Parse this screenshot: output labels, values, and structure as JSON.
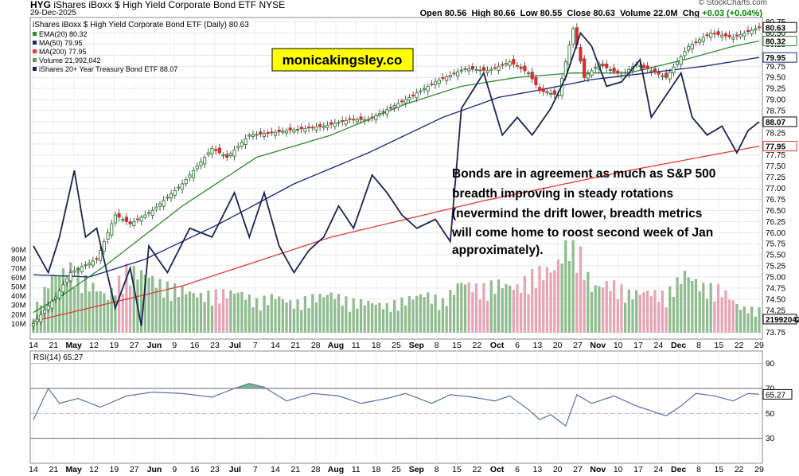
{
  "header": {
    "symbol": "HYG",
    "name": "iShares iBoxx $ High Yield Corporate Bond ETF",
    "exchange": "NYSE",
    "date": "29-Dec-2025",
    "copyright": "© StockCharts.com",
    "open_label": "Open",
    "open": "80.56",
    "high_label": "High",
    "high": "80.66",
    "low_label": "Low",
    "low": "80.55",
    "close_label": "Close",
    "close": "80.63",
    "volume_label": "Volume",
    "volume": "22.0M",
    "chg_label": "Chg",
    "chg": "+0.03 (+0.04%)"
  },
  "legend": {
    "title": "iShares iBoxx $ High Yield Corporate Bond ETF (Daily) 80.63",
    "ema": "EMA(20) 80.32",
    "ma50": "MA(50) 79.95",
    "ma200": "MA(200) 77.95",
    "volume": "Volume 21,992,042",
    "tlt": "iShares 20+ Year Treasury Bond ETF 88.07"
  },
  "watermark": "monicakingsley.co",
  "annotation": [
    "Bonds are in agreement as much as S&P 500",
    "breadth improving in steady rotations",
    "(nevermind the drift lower, breadth metrics",
    "will come home to roost second week of Jan",
    "approximately)."
  ],
  "rsi_label": "RSI(14) 65.27",
  "colors": {
    "up": "#2e7d32",
    "down": "#d32f2f",
    "ema": "#2e8b2e",
    "ma50": "#1a237e",
    "ma200": "#e53935",
    "tlt": "#1a2350",
    "vol_up": "#8fbc8f",
    "vol_down": "#e6a4b4",
    "rsi": "#5a6fa8"
  },
  "chart_data": {
    "type": "candlestick",
    "title": "iShares iBoxx $ High Yield Corporate Bond ETF (Daily) 80.63",
    "price_axis": {
      "ticks": [
        "80.75",
        "80.50",
        "80.25",
        "80.00",
        "79.75",
        "79.50",
        "79.25",
        "79.00",
        "78.75",
        "78.50",
        "78.25",
        "78.00",
        "77.75",
        "77.50",
        "77.25",
        "77.00",
        "76.75",
        "76.50",
        "76.25",
        "76.00",
        "75.75",
        "75.50",
        "75.25",
        "75.00",
        "74.75",
        "74.50",
        "74.25",
        "74.00",
        "73.75"
      ],
      "range": [
        73.6,
        80.85
      ],
      "value_labels": [
        {
          "value": 80.63,
          "text": "80.63"
        },
        {
          "value": 80.32,
          "text": "80.32"
        },
        {
          "value": 79.95,
          "text": "79.95"
        },
        {
          "value": 78.5,
          "text": "88.07"
        },
        {
          "value": 77.95,
          "text": "77.95"
        },
        {
          "value": 74.05,
          "text": "21992042"
        }
      ]
    },
    "volume_axis": {
      "ticks": [
        "90M",
        "80M",
        "70M",
        "60M",
        "50M",
        "40M",
        "30M",
        "20M",
        "10M"
      ],
      "range": [
        0,
        100
      ]
    },
    "x_labels": [
      "14",
      "21",
      "May",
      "12",
      "19",
      "27",
      "Jun",
      "9",
      "16",
      "23",
      "Jul",
      "7",
      "14",
      "21",
      "28",
      "Aug",
      "11",
      "18",
      "25",
      "Sep",
      "8",
      "15",
      "22",
      "Oct",
      "6",
      "13",
      "20",
      "27",
      "Nov",
      "10",
      "17",
      "24",
      "Dec",
      "8",
      "15",
      "22",
      "29"
    ],
    "x_bold": [
      "May",
      "Jun",
      "Jul",
      "Aug",
      "Sep",
      "Oct",
      "Nov",
      "Dec"
    ],
    "close_anchors": [
      [
        0,
        73.95
      ],
      [
        6,
        74.55
      ],
      [
        10,
        75.1
      ],
      [
        17,
        75.4
      ],
      [
        22,
        76.4
      ],
      [
        26,
        76.2
      ],
      [
        32,
        76.5
      ],
      [
        40,
        77.1
      ],
      [
        48,
        77.9
      ],
      [
        52,
        77.7
      ],
      [
        58,
        78.2
      ],
      [
        64,
        78.25
      ],
      [
        68,
        78.3
      ],
      [
        78,
        78.4
      ],
      [
        85,
        78.55
      ],
      [
        90,
        78.55
      ],
      [
        100,
        79.0
      ],
      [
        108,
        79.4
      ],
      [
        116,
        79.7
      ],
      [
        122,
        79.65
      ],
      [
        128,
        79.85
      ],
      [
        133,
        79.6
      ],
      [
        136,
        79.2
      ],
      [
        141,
        79.1
      ],
      [
        145,
        80.6
      ],
      [
        148,
        79.5
      ],
      [
        152,
        79.8
      ],
      [
        158,
        79.55
      ],
      [
        162,
        79.8
      ],
      [
        170,
        79.5
      ],
      [
        176,
        80.2
      ],
      [
        182,
        80.5
      ],
      [
        188,
        80.4
      ],
      [
        195,
        80.63
      ]
    ],
    "ema20_anchors": [
      [
        0,
        74.2
      ],
      [
        8,
        74.6
      ],
      [
        20,
        75.3
      ],
      [
        40,
        76.6
      ],
      [
        60,
        77.7
      ],
      [
        80,
        78.2
      ],
      [
        100,
        78.9
      ],
      [
        115,
        79.3
      ],
      [
        130,
        79.5
      ],
      [
        145,
        79.6
      ],
      [
        160,
        79.6
      ],
      [
        175,
        79.9
      ],
      [
        188,
        80.2
      ],
      [
        195,
        80.32
      ]
    ],
    "ma50_anchors": [
      [
        0,
        75.05
      ],
      [
        15,
        75.0
      ],
      [
        30,
        75.4
      ],
      [
        50,
        76.2
      ],
      [
        70,
        77.1
      ],
      [
        90,
        77.8
      ],
      [
        110,
        78.6
      ],
      [
        125,
        79.05
      ],
      [
        135,
        79.2
      ],
      [
        150,
        79.45
      ],
      [
        165,
        79.6
      ],
      [
        180,
        79.75
      ],
      [
        195,
        79.95
      ]
    ],
    "ma200_anchors": [
      [
        0,
        74.0
      ],
      [
        40,
        74.8
      ],
      [
        80,
        75.9
      ],
      [
        120,
        76.7
      ],
      [
        160,
        77.4
      ],
      [
        195,
        77.95
      ]
    ],
    "tlt_anchors": [
      [
        0,
        75.7
      ],
      [
        4,
        75.1
      ],
      [
        7,
        75.9
      ],
      [
        11,
        77.4
      ],
      [
        14,
        75.9
      ],
      [
        17,
        76.1
      ],
      [
        22,
        74.3
      ],
      [
        26,
        75.2
      ],
      [
        29,
        73.9
      ],
      [
        31,
        75.7
      ],
      [
        36,
        75.1
      ],
      [
        42,
        76.1
      ],
      [
        48,
        75.9
      ],
      [
        54,
        76.9
      ],
      [
        58,
        75.9
      ],
      [
        62,
        76.9
      ],
      [
        66,
        75.7
      ],
      [
        70,
        75.1
      ],
      [
        74,
        75.6
      ],
      [
        78,
        75.9
      ],
      [
        82,
        76.6
      ],
      [
        86,
        76.1
      ],
      [
        91,
        77.3
      ],
      [
        95,
        76.9
      ],
      [
        99,
        76.4
      ],
      [
        103,
        76.1
      ],
      [
        108,
        76.3
      ],
      [
        112,
        75.8
      ],
      [
        115,
        78.8
      ],
      [
        118,
        79.2
      ],
      [
        121,
        79.6
      ],
      [
        126,
        78.2
      ],
      [
        130,
        78.6
      ],
      [
        134,
        78.2
      ],
      [
        139,
        78.8
      ],
      [
        143,
        79.5
      ],
      [
        147,
        80.5
      ],
      [
        150,
        80.2
      ],
      [
        154,
        79.3
      ],
      [
        158,
        79.4
      ],
      [
        163,
        79.9
      ],
      [
        166,
        78.6
      ],
      [
        170,
        79.1
      ],
      [
        174,
        79.6
      ],
      [
        177,
        78.6
      ],
      [
        181,
        78.2
      ],
      [
        185,
        78.4
      ],
      [
        189,
        77.8
      ],
      [
        192,
        78.3
      ],
      [
        195,
        78.5
      ]
    ],
    "volume_anchors": [
      [
        0,
        20
      ],
      [
        5,
        55
      ],
      [
        10,
        62
      ],
      [
        15,
        48
      ],
      [
        20,
        35
      ],
      [
        25,
        60
      ],
      [
        30,
        58
      ],
      [
        35,
        45
      ],
      [
        40,
        42
      ],
      [
        45,
        36
      ],
      [
        50,
        38
      ],
      [
        55,
        40
      ],
      [
        60,
        30
      ],
      [
        65,
        36
      ],
      [
        70,
        28
      ],
      [
        75,
        34
      ],
      [
        80,
        38
      ],
      [
        85,
        30
      ],
      [
        90,
        30
      ],
      [
        95,
        26
      ],
      [
        100,
        32
      ],
      [
        105,
        38
      ],
      [
        110,
        30
      ],
      [
        115,
        50
      ],
      [
        120,
        42
      ],
      [
        125,
        48
      ],
      [
        130,
        44
      ],
      [
        135,
        58
      ],
      [
        140,
        62
      ],
      [
        145,
        96
      ],
      [
        150,
        44
      ],
      [
        155,
        48
      ],
      [
        160,
        38
      ],
      [
        165,
        40
      ],
      [
        170,
        36
      ],
      [
        175,
        58
      ],
      [
        180,
        44
      ],
      [
        185,
        42
      ],
      [
        190,
        24
      ],
      [
        195,
        22
      ]
    ],
    "rsi": {
      "label": "RSI(14) 65.27",
      "ticks": [
        "90",
        "70",
        "50",
        "30"
      ],
      "range": [
        10,
        100
      ],
      "overbought": 70,
      "oversold": 30,
      "anchors": [
        [
          0,
          45
        ],
        [
          4,
          70
        ],
        [
          7,
          58
        ],
        [
          12,
          62
        ],
        [
          18,
          55
        ],
        [
          25,
          64
        ],
        [
          32,
          67
        ],
        [
          40,
          66
        ],
        [
          48,
          63
        ],
        [
          54,
          70
        ],
        [
          58,
          74
        ],
        [
          62,
          71
        ],
        [
          68,
          60
        ],
        [
          75,
          66
        ],
        [
          82,
          64
        ],
        [
          88,
          58
        ],
        [
          95,
          62
        ],
        [
          100,
          66
        ],
        [
          107,
          58
        ],
        [
          112,
          65
        ],
        [
          118,
          63
        ],
        [
          124,
          60
        ],
        [
          128,
          64
        ],
        [
          133,
          53
        ],
        [
          136,
          45
        ],
        [
          139,
          49
        ],
        [
          143,
          40
        ],
        [
          146,
          65
        ],
        [
          150,
          58
        ],
        [
          156,
          64
        ],
        [
          162,
          56
        ],
        [
          166,
          52
        ],
        [
          170,
          48
        ],
        [
          174,
          56
        ],
        [
          178,
          66
        ],
        [
          183,
          64
        ],
        [
          188,
          60
        ],
        [
          192,
          66
        ],
        [
          195,
          65.27
        ]
      ],
      "last_label": "65.27"
    }
  }
}
